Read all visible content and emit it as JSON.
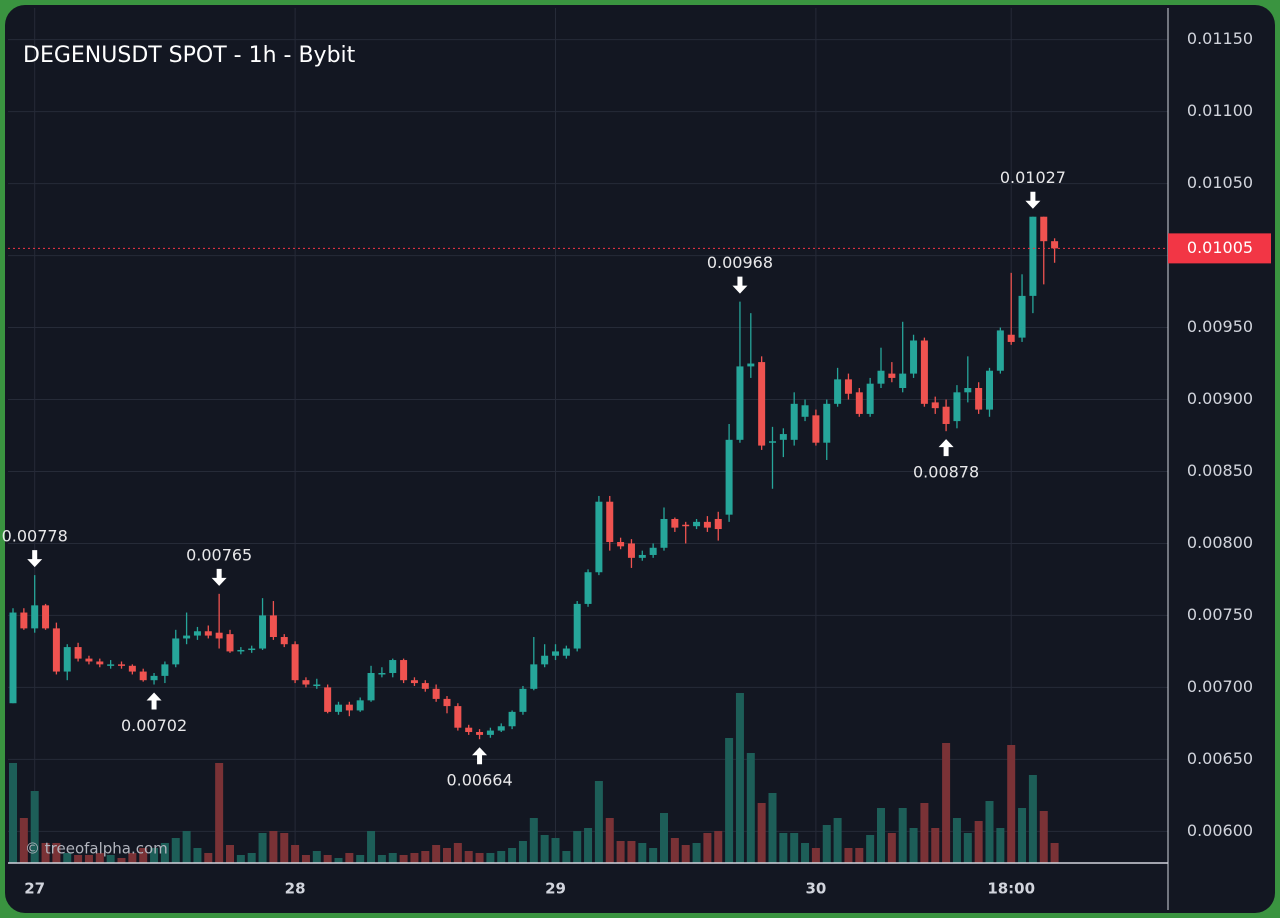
{
  "chart_data": {
    "type": "candlestick",
    "title": "DEGENUSDT SPOT - 1h - Bybit",
    "watermark": "© treeofalpha.com",
    "categories": [
      null,
      null,
      "27",
      null,
      null,
      null,
      null,
      null,
      null,
      null,
      null,
      null,
      null,
      null,
      null,
      null,
      null,
      null,
      null,
      null,
      null,
      null,
      null,
      null,
      null,
      null,
      "28",
      null,
      null,
      null,
      null,
      null,
      null,
      null,
      null,
      null,
      null,
      null,
      null,
      null,
      null,
      null,
      null,
      null,
      null,
      null,
      null,
      null,
      null,
      null,
      "29",
      null,
      null,
      null,
      null,
      null,
      null,
      null,
      null,
      null,
      null,
      null,
      null,
      null,
      null,
      null,
      null,
      null,
      null,
      null,
      null,
      null,
      null,
      null,
      "30",
      null,
      null,
      null,
      null,
      null,
      null,
      null,
      null,
      null,
      null,
      null,
      null,
      null,
      null,
      null,
      null,
      null,
      "18:00",
      null,
      null,
      null,
      null
    ],
    "open": [
      0.00689,
      0.00752,
      0.00741,
      0.00757,
      0.00741,
      0.00711,
      0.00728,
      0.0072,
      0.00718,
      0.00716,
      0.00716,
      0.00715,
      0.00711,
      0.00705,
      0.00708,
      0.00716,
      0.00734,
      0.00736,
      0.00739,
      0.00738,
      0.00737,
      0.00725,
      0.00726,
      0.00727,
      0.0075,
      0.00735,
      0.0073,
      0.00705,
      0.00702,
      0.007,
      0.00683,
      0.00688,
      0.00684,
      0.00691,
      0.0071,
      0.0071,
      0.00719,
      0.00705,
      0.00703,
      0.00699,
      0.00692,
      0.00687,
      0.00672,
      0.00669,
      0.00667,
      0.0067,
      0.00673,
      0.00683,
      0.00699,
      0.00716,
      0.00722,
      0.00722,
      0.00727,
      0.00758,
      0.0078,
      0.00829,
      0.00801,
      0.008,
      0.0079,
      0.00792,
      0.00797,
      0.00817,
      0.00813,
      0.00812,
      0.00815,
      0.00817,
      0.0082,
      0.00872,
      0.00923,
      0.00926,
      0.0087,
      0.00872,
      0.00872,
      0.00888,
      0.00889,
      0.0087,
      0.00897,
      0.00914,
      0.00905,
      0.0089,
      0.00911,
      0.00918,
      0.00908,
      0.00918,
      0.00941,
      0.00898,
      0.00895,
      0.00885,
      0.00905,
      0.00908,
      0.00893,
      0.0092,
      0.00945,
      0.00943,
      0.00972,
      0.01027,
      0.0101
    ],
    "high": [
      0.00755,
      0.00755,
      0.00778,
      0.00758,
      0.00745,
      0.0073,
      0.00731,
      0.00722,
      0.0072,
      0.00719,
      0.00718,
      0.00716,
      0.00713,
      0.0071,
      0.00718,
      0.0074,
      0.00752,
      0.00742,
      0.00743,
      0.00765,
      0.0074,
      0.00728,
      0.00729,
      0.00762,
      0.0076,
      0.00737,
      0.00732,
      0.00707,
      0.00706,
      0.00702,
      0.0069,
      0.0069,
      0.00693,
      0.00715,
      0.00714,
      0.0072,
      0.0072,
      0.00707,
      0.00705,
      0.00702,
      0.00694,
      0.00689,
      0.00674,
      0.00671,
      0.00672,
      0.00675,
      0.00684,
      0.00701,
      0.00735,
      0.0073,
      0.0073,
      0.00729,
      0.0076,
      0.00782,
      0.00833,
      0.00833,
      0.00804,
      0.00803,
      0.00795,
      0.008,
      0.00825,
      0.00818,
      0.00815,
      0.00817,
      0.00819,
      0.00822,
      0.00883,
      0.00968,
      0.0096,
      0.0093,
      0.00881,
      0.0088,
      0.00905,
      0.009,
      0.00893,
      0.009,
      0.00922,
      0.00918,
      0.00908,
      0.00915,
      0.00936,
      0.00926,
      0.00954,
      0.00945,
      0.00943,
      0.00902,
      0.009,
      0.0091,
      0.0093,
      0.00912,
      0.00922,
      0.0095,
      0.00988,
      0.00987,
      0.01027,
      0.01027,
      0.01012
    ],
    "low": [
      0.00689,
      0.0074,
      0.00738,
      0.0074,
      0.00709,
      0.00705,
      0.00718,
      0.00716,
      0.00714,
      0.00713,
      0.00713,
      0.00709,
      0.00704,
      0.00702,
      0.00703,
      0.00714,
      0.0073,
      0.00733,
      0.00734,
      0.00727,
      0.00724,
      0.00723,
      0.00724,
      0.00726,
      0.00733,
      0.00728,
      0.00703,
      0.007,
      0.00699,
      0.00682,
      0.00681,
      0.0068,
      0.00683,
      0.0069,
      0.00707,
      0.00707,
      0.00703,
      0.00701,
      0.00697,
      0.0069,
      0.00682,
      0.0067,
      0.00667,
      0.00664,
      0.00665,
      0.00669,
      0.00671,
      0.00681,
      0.00698,
      0.00714,
      0.00719,
      0.0072,
      0.00725,
      0.00756,
      0.00778,
      0.00795,
      0.00796,
      0.00783,
      0.00788,
      0.0079,
      0.00795,
      0.00808,
      0.008,
      0.0081,
      0.00808,
      0.00802,
      0.00815,
      0.0087,
      0.00915,
      0.00865,
      0.00838,
      0.0086,
      0.00868,
      0.00885,
      0.00868,
      0.00858,
      0.00895,
      0.009,
      0.00888,
      0.00888,
      0.00908,
      0.00912,
      0.00905,
      0.00915,
      0.00895,
      0.0089,
      0.00878,
      0.0088,
      0.00898,
      0.0089,
      0.00888,
      0.00918,
      0.00938,
      0.0094,
      0.0096,
      0.0098,
      0.00995
    ],
    "close": [
      0.00752,
      0.00741,
      0.00757,
      0.00741,
      0.00711,
      0.00728,
      0.0072,
      0.00718,
      0.00716,
      0.00716,
      0.00715,
      0.00711,
      0.00705,
      0.00708,
      0.00716,
      0.00734,
      0.00736,
      0.00739,
      0.00736,
      0.00734,
      0.00725,
      0.00726,
      0.00727,
      0.0075,
      0.00735,
      0.0073,
      0.00705,
      0.00702,
      0.00702,
      0.00683,
      0.00688,
      0.00684,
      0.00691,
      0.0071,
      0.0071,
      0.00719,
      0.00705,
      0.00703,
      0.00699,
      0.00692,
      0.00687,
      0.00672,
      0.00669,
      0.00667,
      0.0067,
      0.00673,
      0.00683,
      0.00699,
      0.00716,
      0.00722,
      0.00725,
      0.00727,
      0.00758,
      0.0078,
      0.00829,
      0.00801,
      0.00798,
      0.0079,
      0.00792,
      0.00797,
      0.00817,
      0.00811,
      0.00812,
      0.00815,
      0.00811,
      0.0081,
      0.00872,
      0.00923,
      0.00925,
      0.00868,
      0.00871,
      0.00876,
      0.00897,
      0.00896,
      0.0087,
      0.00897,
      0.00914,
      0.00904,
      0.0089,
      0.00911,
      0.0092,
      0.00915,
      0.00918,
      0.00941,
      0.00897,
      0.00894,
      0.00883,
      0.00905,
      0.00908,
      0.00893,
      0.0092,
      0.00948,
      0.0094,
      0.00972,
      0.01027,
      0.0101,
      0.01005
    ],
    "volume": [
      100,
      45,
      72,
      20,
      20,
      10,
      8,
      8,
      10,
      8,
      5,
      10,
      15,
      15,
      20,
      25,
      32,
      15,
      10,
      100,
      18,
      8,
      10,
      30,
      32,
      30,
      18,
      8,
      12,
      8,
      5,
      10,
      8,
      32,
      8,
      10,
      8,
      10,
      12,
      18,
      15,
      20,
      12,
      10,
      10,
      12,
      15,
      22,
      45,
      28,
      25,
      12,
      32,
      35,
      82,
      45,
      22,
      22,
      20,
      15,
      50,
      25,
      18,
      20,
      30,
      32,
      125,
      170,
      110,
      60,
      70,
      30,
      30,
      20,
      15,
      38,
      45,
      15,
      15,
      28,
      55,
      30,
      55,
      35,
      60,
      35,
      120,
      45,
      30,
      42,
      62,
      35,
      118,
      55,
      88,
      52,
      20
    ],
    "up_color": "#26a69a",
    "down_color": "#ef5350",
    "volume_up_color": "#1d5e58",
    "volume_down_color": "#7a3236",
    "ylim": [
      0.00578,
      0.01172
    ],
    "yticks": [
      {
        "value": 0.006,
        "label": "0.00600"
      },
      {
        "value": 0.0065,
        "label": "0.00650"
      },
      {
        "value": 0.007,
        "label": "0.00700"
      },
      {
        "value": 0.0075,
        "label": "0.00750"
      },
      {
        "value": 0.008,
        "label": "0.00800"
      },
      {
        "value": 0.0085,
        "label": "0.00850"
      },
      {
        "value": 0.009,
        "label": "0.00900"
      },
      {
        "value": 0.0095,
        "label": "0.00950"
      },
      {
        "value": 0.01,
        "label": "0.01000"
      },
      {
        "value": 0.0105,
        "label": "0.01050"
      },
      {
        "value": 0.011,
        "label": "0.01100"
      },
      {
        "value": 0.0115,
        "label": "0.01150"
      }
    ],
    "grid": true,
    "last_price": {
      "value": 0.01005,
      "label": "0.01005",
      "color": "#f23645"
    },
    "annotations": [
      {
        "index": 2,
        "side": "high",
        "value": 0.00778,
        "label": "0.00778"
      },
      {
        "index": 13,
        "side": "low",
        "value": 0.00702,
        "label": "0.00702"
      },
      {
        "index": 19,
        "side": "high",
        "value": 0.00765,
        "label": "0.00765"
      },
      {
        "index": 43,
        "side": "low",
        "value": 0.00664,
        "label": "0.00664"
      },
      {
        "index": 67,
        "side": "high",
        "value": 0.00968,
        "label": "0.00968"
      },
      {
        "index": 86,
        "side": "low",
        "value": 0.00878,
        "label": "0.00878"
      },
      {
        "index": 94,
        "side": "high",
        "value": 0.01027,
        "label": "0.01027"
      }
    ]
  }
}
